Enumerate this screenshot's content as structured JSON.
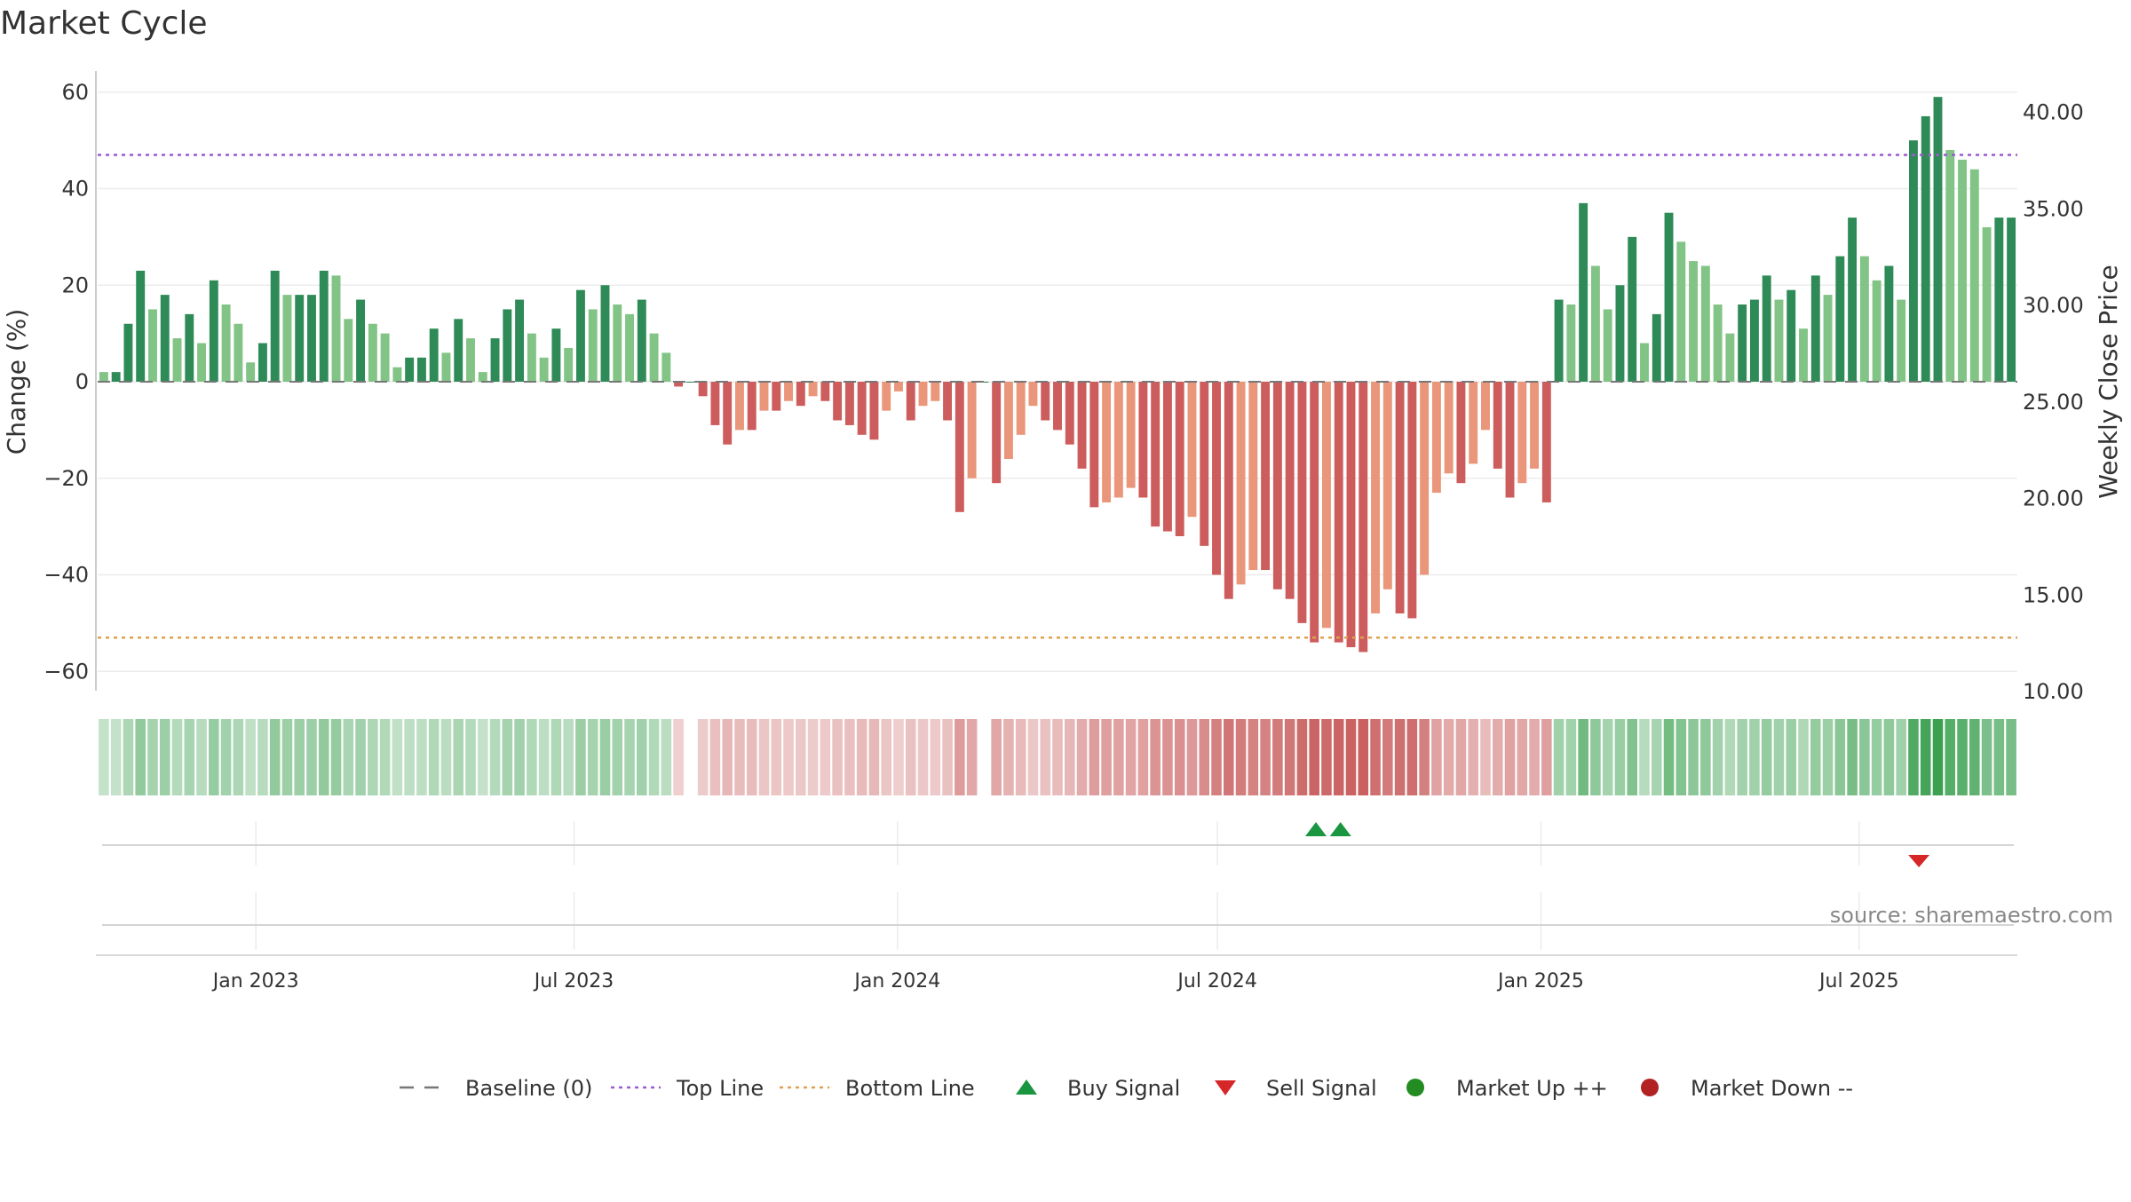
{
  "chart_data": {
    "type": "bar",
    "title": "Market Cycle",
    "ylabel_left": "Change (%)",
    "ylabel_right": "Weekly Close Price",
    "ylim_left": [
      -64,
      64
    ],
    "ylim_right": [
      10.0,
      42.0
    ],
    "yticks_left": [
      "60",
      "40",
      "20",
      "0",
      "−20",
      "−40",
      "−60"
    ],
    "yticks_left_values": [
      60,
      40,
      20,
      0,
      -20,
      -40,
      -60
    ],
    "yticks_right": [
      "40.00",
      "35.00",
      "30.00",
      "25.00",
      "20.00",
      "15.00",
      "10.00"
    ],
    "yticks_right_values": [
      40,
      35,
      30,
      25,
      20,
      15,
      10
    ],
    "x_start": "2022-10-03",
    "x_end": "2025-09-29",
    "x_ticks": [
      {
        "date": "2023-01-01",
        "label": "Jan 2023"
      },
      {
        "date": "2023-07-01",
        "label": "Jul 2023"
      },
      {
        "date": "2024-01-01",
        "label": "Jan 2024"
      },
      {
        "date": "2024-07-01",
        "label": "Jul 2024"
      },
      {
        "date": "2025-01-01",
        "label": "Jan 2025"
      },
      {
        "date": "2025-07-01",
        "label": "Jul 2025"
      }
    ],
    "grid": true,
    "top_line": 47,
    "bottom_line": -53,
    "change_values": [
      2,
      2,
      12,
      23,
      15,
      18,
      9,
      14,
      8,
      21,
      16,
      12,
      4,
      8,
      23,
      18,
      18,
      18,
      23,
      22,
      13,
      17,
      12,
      10,
      3,
      5,
      5,
      11,
      6,
      13,
      9,
      2,
      9,
      15,
      17,
      10,
      5,
      11,
      7,
      19,
      15,
      20,
      16,
      14,
      17,
      10,
      6,
      -1,
      0,
      -3,
      -9,
      -13,
      -10,
      -10,
      -6,
      -6,
      -4,
      -5,
      -3,
      -4,
      -8,
      -9,
      -11,
      -12,
      -6,
      -2,
      -8,
      -5,
      -4,
      -8,
      -27,
      -20,
      0,
      -21,
      -16,
      -11,
      -5,
      -8,
      -10,
      -13,
      -18,
      -26,
      -25,
      -24,
      -22,
      -24,
      -30,
      -31,
      -32,
      -28,
      -34,
      -40,
      -45,
      -42,
      -39,
      -39,
      -43,
      -45,
      -50,
      -54,
      -51,
      -54,
      -55,
      -56,
      -48,
      -43,
      -48,
      -49,
      -40,
      -23,
      -19,
      -21,
      -17,
      -10,
      -18,
      -24,
      -21,
      -18,
      -25,
      17,
      16,
      37,
      24,
      15,
      20,
      30,
      8,
      14,
      35,
      29,
      25,
      24,
      16,
      10,
      16,
      17,
      22,
      17,
      19,
      11,
      22,
      18,
      26,
      34,
      26,
      21,
      24,
      17,
      50,
      55,
      59,
      48,
      46,
      44,
      32,
      34,
      34
    ],
    "buy_signals": [
      "2024-08-26",
      "2024-09-09"
    ],
    "sell_signals": [
      "2025-08-04"
    ],
    "annotation": "source: sharemaestro.com",
    "legend_position": "bottom",
    "legend": [
      {
        "label": "Baseline (0)",
        "kind": "dash-gray"
      },
      {
        "label": "Top Line",
        "kind": "dot-purple"
      },
      {
        "label": "Bottom Line",
        "kind": "dot-orange"
      },
      {
        "label": "Buy Signal",
        "kind": "tri-up"
      },
      {
        "label": "Sell Signal",
        "kind": "tri-down"
      },
      {
        "label": "Market Up ++",
        "kind": "dot-green"
      },
      {
        "label": "Market Down --",
        "kind": "dot-red"
      }
    ],
    "colors": {
      "pos_dark": "#2e8b57",
      "pos_light": "#82c485",
      "neg_dark": "#cd5c5c",
      "neg_light": "#e9967a",
      "top_line": "#9b59d0",
      "bottom_line": "#e0a050",
      "buy": "#1a9641",
      "sell": "#d62728",
      "market_up": "#228b22",
      "market_down": "#b22222",
      "baseline": "#777777"
    }
  }
}
